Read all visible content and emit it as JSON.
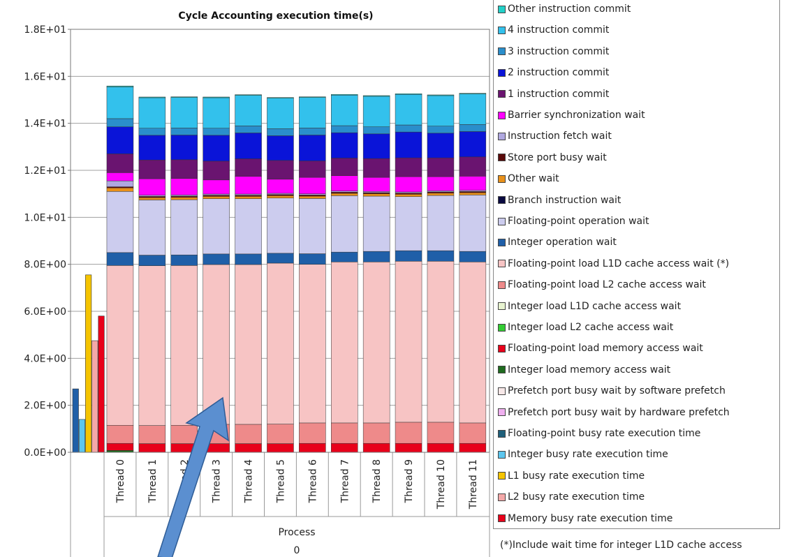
{
  "chart_data": {
    "type": "bar",
    "title": "Cycle Accounting execution time(s)",
    "xlabel": "",
    "ylabel": "",
    "ylim": [
      0,
      18
    ],
    "y_ticks": [
      "0.0E+00",
      "2.0E+00",
      "4.0E+00",
      "6.0E+00",
      "8.0E+00",
      "1.0E+01",
      "1.2E+01",
      "1.4E+01",
      "1.6E+01",
      "1.8E+01"
    ],
    "y_tick_values": [
      0,
      2,
      4,
      6,
      8,
      10,
      12,
      14,
      16,
      18
    ],
    "grid": "horizontal",
    "legend_position": "right",
    "process_label": "Process",
    "process_value": "0",
    "busy_rates": [
      {
        "name": "Floating-point busy rate execution time",
        "value": 2.7,
        "color": "#1f5fa8"
      },
      {
        "name": "Integer busy rate execution time",
        "value": 1.4,
        "color": "#5cc6ee"
      },
      {
        "name": "L1 busy rate execution time",
        "value": 7.55,
        "color": "#f5c400"
      },
      {
        "name": "L2 busy rate execution time",
        "value": 4.75,
        "color": "#f4a8a8"
      },
      {
        "name": "Memory busy rate execution time",
        "value": 5.8,
        "color": "#e8001a"
      }
    ],
    "categories": [
      "Thread 0",
      "Thread 1",
      "Thread 2",
      "Thread 3",
      "Thread 4",
      "Thread 5",
      "Thread 6",
      "Thread 7",
      "Thread 8",
      "Thread 9",
      "Thread 10",
      "Thread 11"
    ],
    "series": [
      {
        "name": "Integer load memory access wait",
        "color": "#1f6b1f",
        "values": [
          0.08,
          0,
          0,
          0,
          0,
          0,
          0,
          0,
          0,
          0,
          0,
          0
        ]
      },
      {
        "name": "Floating-point load memory access wait",
        "color": "#e8001a",
        "values": [
          0.3,
          0.37,
          0.37,
          0.37,
          0.37,
          0.37,
          0.38,
          0.38,
          0.38,
          0.38,
          0.38,
          0.38
        ]
      },
      {
        "name": "Floating-point load L2 cache access wait",
        "color": "#ee8a8a",
        "values": [
          0.77,
          0.77,
          0.78,
          0.82,
          0.82,
          0.83,
          0.87,
          0.87,
          0.87,
          0.9,
          0.9,
          0.87
        ]
      },
      {
        "name": "Floating-point load L1D cache access wait (*)",
        "color": "#f7c4c4",
        "values": [
          6.8,
          6.8,
          6.8,
          6.8,
          6.8,
          6.85,
          6.75,
          6.85,
          6.85,
          6.85,
          6.85,
          6.85
        ]
      },
      {
        "name": "Integer operation wait",
        "color": "#1f5fa8",
        "values": [
          0.55,
          0.45,
          0.45,
          0.45,
          0.45,
          0.42,
          0.45,
          0.42,
          0.45,
          0.45,
          0.45,
          0.45
        ]
      },
      {
        "name": "Floating-point operation wait",
        "color": "#ccccee",
        "values": [
          2.6,
          2.35,
          2.35,
          2.35,
          2.35,
          2.35,
          2.35,
          2.4,
          2.35,
          2.3,
          2.35,
          2.4
        ]
      },
      {
        "name": "Other wait",
        "color": "#e8901a",
        "values": [
          0.15,
          0.1,
          0.1,
          0.1,
          0.1,
          0.1,
          0.1,
          0.1,
          0.1,
          0.1,
          0.1,
          0.1
        ]
      },
      {
        "name": "Store port busy wait",
        "color": "#5a0a0a",
        "values": [
          0.05,
          0.05,
          0.05,
          0.05,
          0.05,
          0.05,
          0.05,
          0.05,
          0.05,
          0.05,
          0.05,
          0.05
        ]
      },
      {
        "name": "Instruction fetch wait",
        "color": "#b0a8e0",
        "values": [
          0.25,
          0.05,
          0.05,
          0.05,
          0.05,
          0.05,
          0.05,
          0.05,
          0.05,
          0.05,
          0.05,
          0.05
        ]
      },
      {
        "name": "Barrier synchronization wait",
        "color": "#ff00ff",
        "values": [
          0.35,
          0.7,
          0.7,
          0.6,
          0.75,
          0.6,
          0.7,
          0.65,
          0.6,
          0.65,
          0.6,
          0.6
        ]
      },
      {
        "name": "1 instruction commit",
        "color": "#6a1470",
        "values": [
          0.8,
          0.8,
          0.8,
          0.8,
          0.75,
          0.8,
          0.7,
          0.75,
          0.8,
          0.8,
          0.8,
          0.82
        ]
      },
      {
        "name": "2 instruction commit",
        "color": "#0a14d8",
        "values": [
          1.15,
          1.05,
          1.05,
          1.1,
          1.1,
          1.05,
          1.1,
          1.08,
          1.05,
          1.1,
          1.05,
          1.08
        ]
      },
      {
        "name": "3 instruction commit",
        "color": "#2a8ecb",
        "values": [
          0.35,
          0.3,
          0.3,
          0.3,
          0.3,
          0.3,
          0.3,
          0.3,
          0.3,
          0.3,
          0.3,
          0.3
        ]
      },
      {
        "name": "4 instruction commit",
        "color": "#33c1ec",
        "values": [
          1.35,
          1.3,
          1.3,
          1.3,
          1.3,
          1.3,
          1.3,
          1.3,
          1.3,
          1.3,
          1.3,
          1.3
        ]
      },
      {
        "name": "Other instruction commit",
        "color": "#22d0c8",
        "values": [
          0.04,
          0.03,
          0.03,
          0.03,
          0.03,
          0.03,
          0.03,
          0.03,
          0.03,
          0.03,
          0.03,
          0.03
        ]
      }
    ],
    "legend": [
      {
        "label": "Other instruction commit",
        "color": "#22d0c8"
      },
      {
        "label": "4 instruction commit",
        "color": "#33c1ec"
      },
      {
        "label": "3 instruction commit",
        "color": "#2a8ecb"
      },
      {
        "label": "2 instruction commit",
        "color": "#0a14d8"
      },
      {
        "label": "1 instruction commit",
        "color": "#6a1470"
      },
      {
        "label": "Barrier synchronization wait",
        "color": "#ff00ff"
      },
      {
        "label": "Instruction fetch wait",
        "color": "#b0a8e0"
      },
      {
        "label": "Store port busy wait",
        "color": "#5a0a0a"
      },
      {
        "label": "Other wait",
        "color": "#e8901a"
      },
      {
        "label": "Branch instruction wait",
        "color": "#0a0a40"
      },
      {
        "label": "Floating-point operation wait",
        "color": "#ccccee"
      },
      {
        "label": "Integer operation wait",
        "color": "#1f5fa8"
      },
      {
        "label": "Floating-point load L1D cache access wait (*)",
        "color": "#f7c4c4"
      },
      {
        "label": "Floating-point load L2 cache access wait",
        "color": "#ee8a8a"
      },
      {
        "label": "Integer load L1D cache access wait",
        "color": "#e8f4d0"
      },
      {
        "label": "Integer load L2 cache access wait",
        "color": "#33cc33"
      },
      {
        "label": "Floating-point load memory access wait",
        "color": "#e8001a"
      },
      {
        "label": "Integer load memory access wait",
        "color": "#1f6b1f"
      },
      {
        "label": "Prefetch port busy wait by software prefetch",
        "color": "#f7e8e8"
      },
      {
        "label": "Prefetch port busy wait by hardware prefetch",
        "color": "#f0b0f0"
      },
      {
        "label": "Floating-point busy rate execution time",
        "color": "#1f5f7a"
      },
      {
        "label": "Integer busy rate execution time",
        "color": "#5cc6ee"
      },
      {
        "label": "L1 busy rate execution time",
        "color": "#f5c400"
      },
      {
        "label": "L2 busy rate execution time",
        "color": "#f4a8a8"
      },
      {
        "label": "Memory busy rate execution time",
        "color": "#e8001a"
      }
    ],
    "footnote": "(*)Include wait time for integer L1D cache access"
  }
}
